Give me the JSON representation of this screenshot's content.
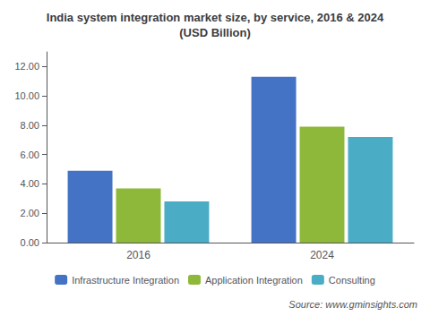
{
  "chart_data": {
    "type": "bar",
    "title": "India system integration market size, by service, 2016 & 2024\n(USD Billion)",
    "categories": [
      "2016",
      "2024"
    ],
    "series": [
      {
        "name": "Infrastructure Integration",
        "color": "#4472c4",
        "values": [
          4.9,
          11.3
        ]
      },
      {
        "name": "Application Integration",
        "color": "#8db83a",
        "values": [
          3.7,
          7.9
        ]
      },
      {
        "name": "Consulting",
        "color": "#4bacc6",
        "values": [
          2.8,
          7.2
        ]
      }
    ],
    "ylim": [
      0,
      13.0
    ],
    "yticks": [
      {
        "value": 0.0,
        "label": "0.00"
      },
      {
        "value": 2.0,
        "label": "2.00"
      },
      {
        "value": 4.0,
        "label": "4.00"
      },
      {
        "value": 6.0,
        "label": "6.00"
      },
      {
        "value": 8.0,
        "label": "8.00"
      },
      {
        "value": 10.0,
        "label": "10.00"
      },
      {
        "value": 12.0,
        "label": "12.00"
      }
    ],
    "grid": false,
    "legend": "bottom",
    "annotations": [
      "Source: www.gminsights.com"
    ]
  }
}
